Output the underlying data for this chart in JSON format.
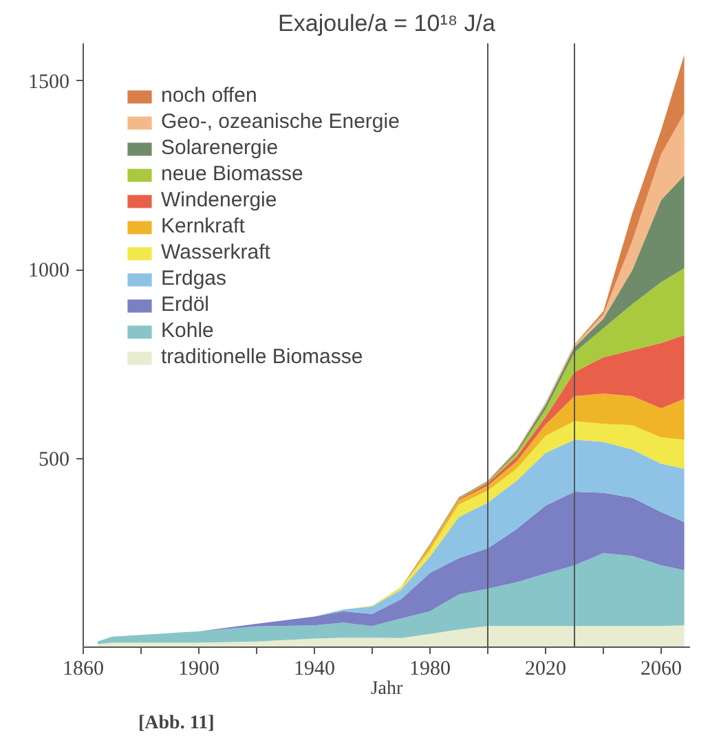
{
  "chart_data": {
    "type": "area",
    "stacked": true,
    "title": "Exajoule/a = 10¹⁸ J/a",
    "xlabel": "Jahr",
    "x": [
      1865,
      1870,
      1900,
      1920,
      1940,
      1950,
      1960,
      1970,
      1980,
      1990,
      2000,
      2010,
      2020,
      2030,
      2040,
      2050,
      2060,
      2068
    ],
    "series": [
      {
        "name": "traditionelle Biomasse",
        "color": "#e8ecd0",
        "values": [
          8,
          12,
          12,
          15,
          23,
          25,
          25,
          24,
          35,
          47,
          56,
          56,
          56,
          56,
          56,
          56,
          56,
          58
        ]
      },
      {
        "name": "Kohle",
        "color": "#88c5c8",
        "values": [
          7,
          16,
          30,
          40,
          35,
          40,
          31,
          52,
          60,
          93,
          99,
          116,
          139,
          161,
          193,
          186,
          161,
          146
        ]
      },
      {
        "name": "Erdöl",
        "color": "#7b7fc4",
        "values": [
          0,
          0,
          0,
          7,
          23,
          30,
          32,
          51,
          102,
          96,
          107,
          141,
          180,
          195,
          160,
          154,
          141,
          127
        ]
      },
      {
        "name": "Erdgas",
        "color": "#8ec3e6",
        "values": [
          0,
          0,
          0,
          0,
          0,
          5,
          20,
          25,
          43,
          109,
          121,
          128,
          140,
          138,
          135,
          128,
          128,
          142
        ]
      },
      {
        "name": "Wasserkraft",
        "color": "#f2e84a",
        "values": [
          0,
          0,
          0,
          0,
          0,
          0,
          2,
          5,
          18,
          33,
          32,
          32,
          45,
          49,
          48,
          64,
          70,
          77
        ]
      },
      {
        "name": "Kernkraft",
        "color": "#f0b429",
        "values": [
          0,
          0,
          0,
          0,
          0,
          0,
          0,
          2,
          10,
          12,
          13,
          19,
          30,
          66,
          80,
          77,
          77,
          108
        ]
      },
      {
        "name": "Windenergie",
        "color": "#e8604a",
        "values": [
          0,
          0,
          0,
          0,
          0,
          0,
          0,
          0,
          2,
          3,
          7,
          13,
          20,
          64,
          96,
          122,
          173,
          169
        ]
      },
      {
        "name": "neue Biomasse",
        "color": "#a9c93f",
        "values": [
          0,
          0,
          0,
          0,
          0,
          0,
          0,
          0,
          2,
          2,
          3,
          9,
          20,
          52,
          77,
          122,
          161,
          177
        ]
      },
      {
        "name": "Solarenergie",
        "color": "#6e8c6a",
        "values": [
          0,
          0,
          0,
          0,
          0,
          0,
          0,
          0,
          2,
          2,
          2,
          6,
          12,
          14,
          25,
          90,
          218,
          246
        ]
      },
      {
        "name": "Geo-, ozeanische Energie",
        "color": "#f4b98a",
        "values": [
          0,
          0,
          0,
          0,
          0,
          0,
          0,
          0,
          0,
          1,
          1,
          3,
          4,
          5,
          12,
          77,
          121,
          165
        ]
      },
      {
        "name": "noch offen",
        "color": "#d9804a",
        "values": [
          0,
          0,
          0,
          0,
          0,
          0,
          0,
          0,
          0,
          0,
          0,
          1,
          2,
          2,
          8,
          74,
          64,
          155
        ]
      }
    ],
    "xlim": [
      1860,
      2070
    ],
    "ylim": [
      0,
      1600
    ],
    "xticks": [
      1860,
      {
        "value": 1880,
        "label": null
      },
      1900,
      {
        "value": 1920,
        "label": null
      },
      1940,
      {
        "value": 1960,
        "label": null
      },
      1980,
      {
        "value": 2000,
        "label": null
      },
      2020,
      {
        "value": 2040,
        "label": null
      },
      2060
    ],
    "yticks": [
      500,
      1000,
      1500
    ],
    "ref_lines": [
      {
        "axis": "x",
        "value": 2000,
        "label": null,
        "color": "#555555"
      },
      {
        "axis": "x",
        "value": 2030,
        "label": null,
        "color": "#555555"
      }
    ],
    "legend": "top left",
    "grid": false,
    "annotations": [
      "[Abb. 11]"
    ]
  }
}
